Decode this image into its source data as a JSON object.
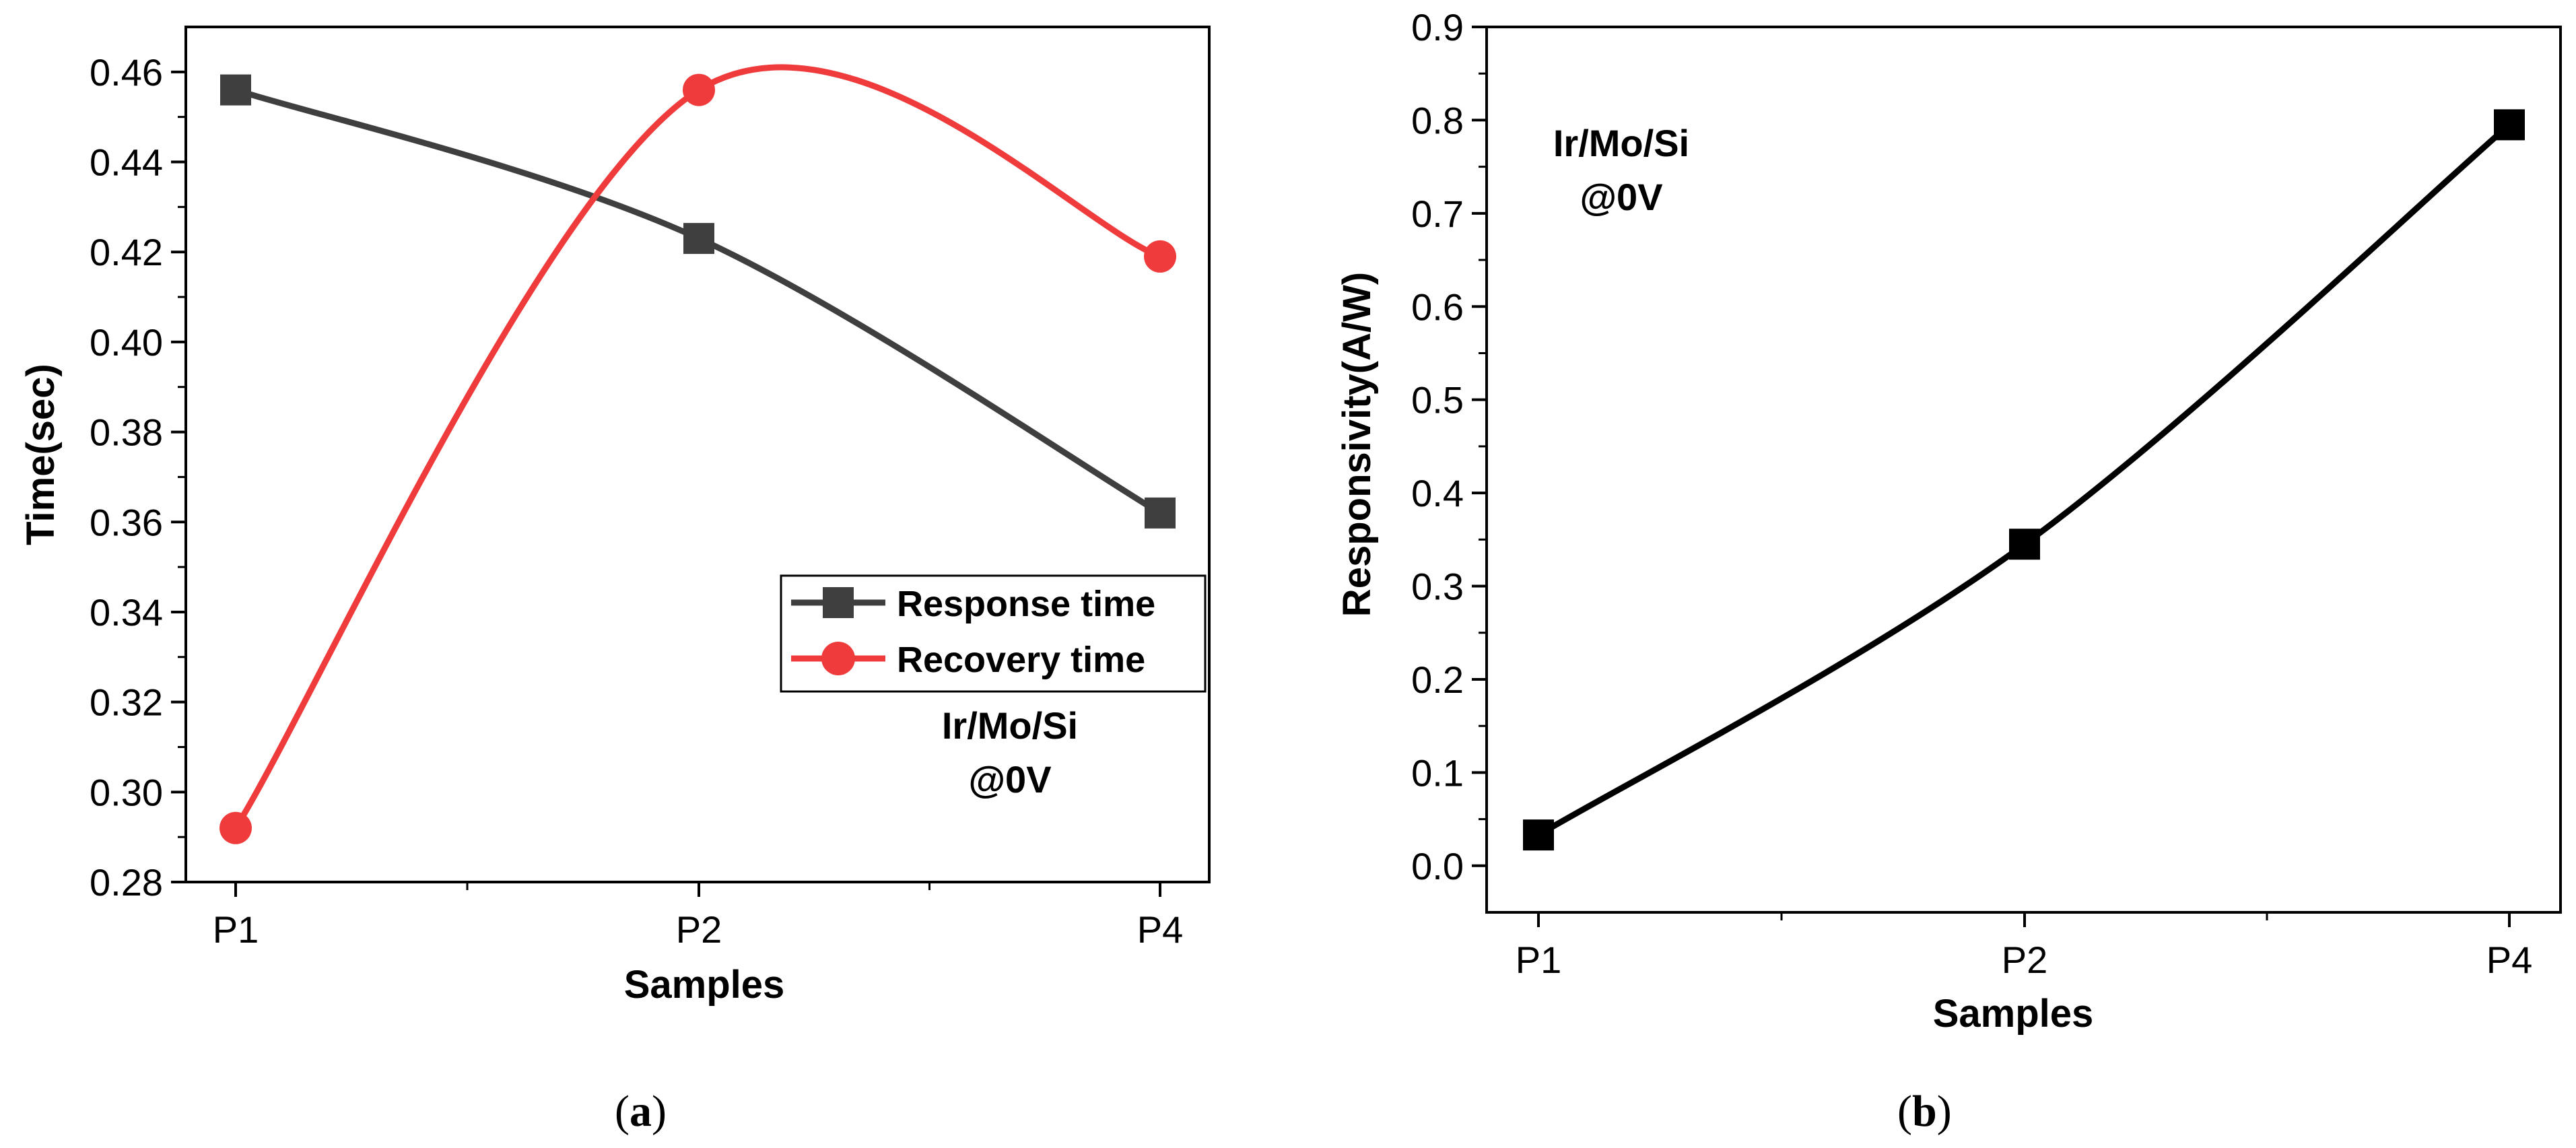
{
  "chart_data": [
    {
      "type": "line",
      "panel_label": "a",
      "categories": [
        "P1",
        "P2",
        "P4"
      ],
      "series": [
        {
          "name": "Response time",
          "values": [
            0.456,
            0.423,
            0.362
          ],
          "color": "#3f3f3f",
          "marker": "square"
        },
        {
          "name": "Recovery time",
          "values": [
            0.292,
            0.456,
            0.419
          ],
          "color": "#ef3b3b",
          "marker": "circle"
        }
      ],
      "xlabel": "Samples",
      "ylabel": "Time(sec)",
      "ylim": [
        0.28,
        0.47
      ],
      "yticks": [
        "0.28",
        "0.30",
        "0.32",
        "0.34",
        "0.36",
        "0.38",
        "0.40",
        "0.42",
        "0.44",
        "0.46"
      ],
      "annotation": [
        "Ir/Mo/Si",
        "@0V"
      ],
      "legend": "center-right"
    },
    {
      "type": "line",
      "panel_label": "b",
      "categories": [
        "P1",
        "P2",
        "P4"
      ],
      "series": [
        {
          "name": "Responsivity",
          "values": [
            0.033,
            0.345,
            0.795
          ],
          "color": "#000000",
          "marker": "square"
        }
      ],
      "xlabel": "Samples",
      "ylabel": "Responsivity(A/W)",
      "ylim": [
        -0.05,
        0.9
      ],
      "yticks": [
        "0.0",
        "0.1",
        "0.2",
        "0.3",
        "0.4",
        "0.5",
        "0.6",
        "0.7",
        "0.8",
        "0.9"
      ],
      "annotation": [
        "Ir/Mo/Si",
        "@0V"
      ],
      "legend": "none"
    }
  ]
}
